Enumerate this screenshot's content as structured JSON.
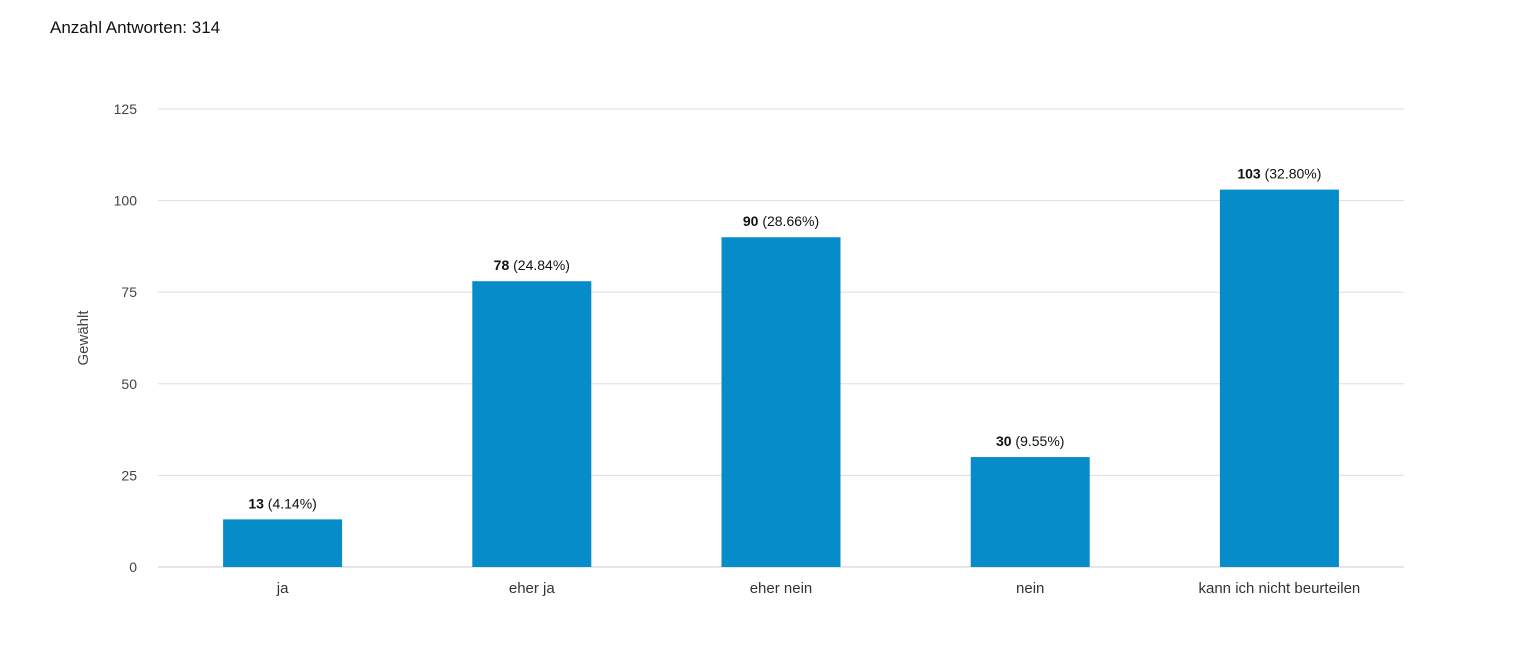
{
  "header": {
    "response_count_label": "Anzahl Antworten: 314"
  },
  "colors": {
    "bar": "#068cc8",
    "grid": "#dddddd",
    "text": "#222222"
  },
  "chart_data": {
    "type": "bar",
    "title": "",
    "xlabel": "",
    "ylabel": "Gewählt",
    "ylim": [
      0,
      125
    ],
    "yticks": [
      0,
      25,
      50,
      75,
      100,
      125
    ],
    "grid": true,
    "categories": [
      "ja",
      "eher ja",
      "eher nein",
      "nein",
      "kann ich nicht beurteilen"
    ],
    "values": [
      13,
      78,
      90,
      30,
      103
    ],
    "value_labels": [
      "13",
      "78",
      "90",
      "30",
      "103"
    ],
    "percent_labels": [
      "(4.14%)",
      "(24.84%)",
      "(28.66%)",
      "(9.55%)",
      "(32.80%)"
    ]
  }
}
